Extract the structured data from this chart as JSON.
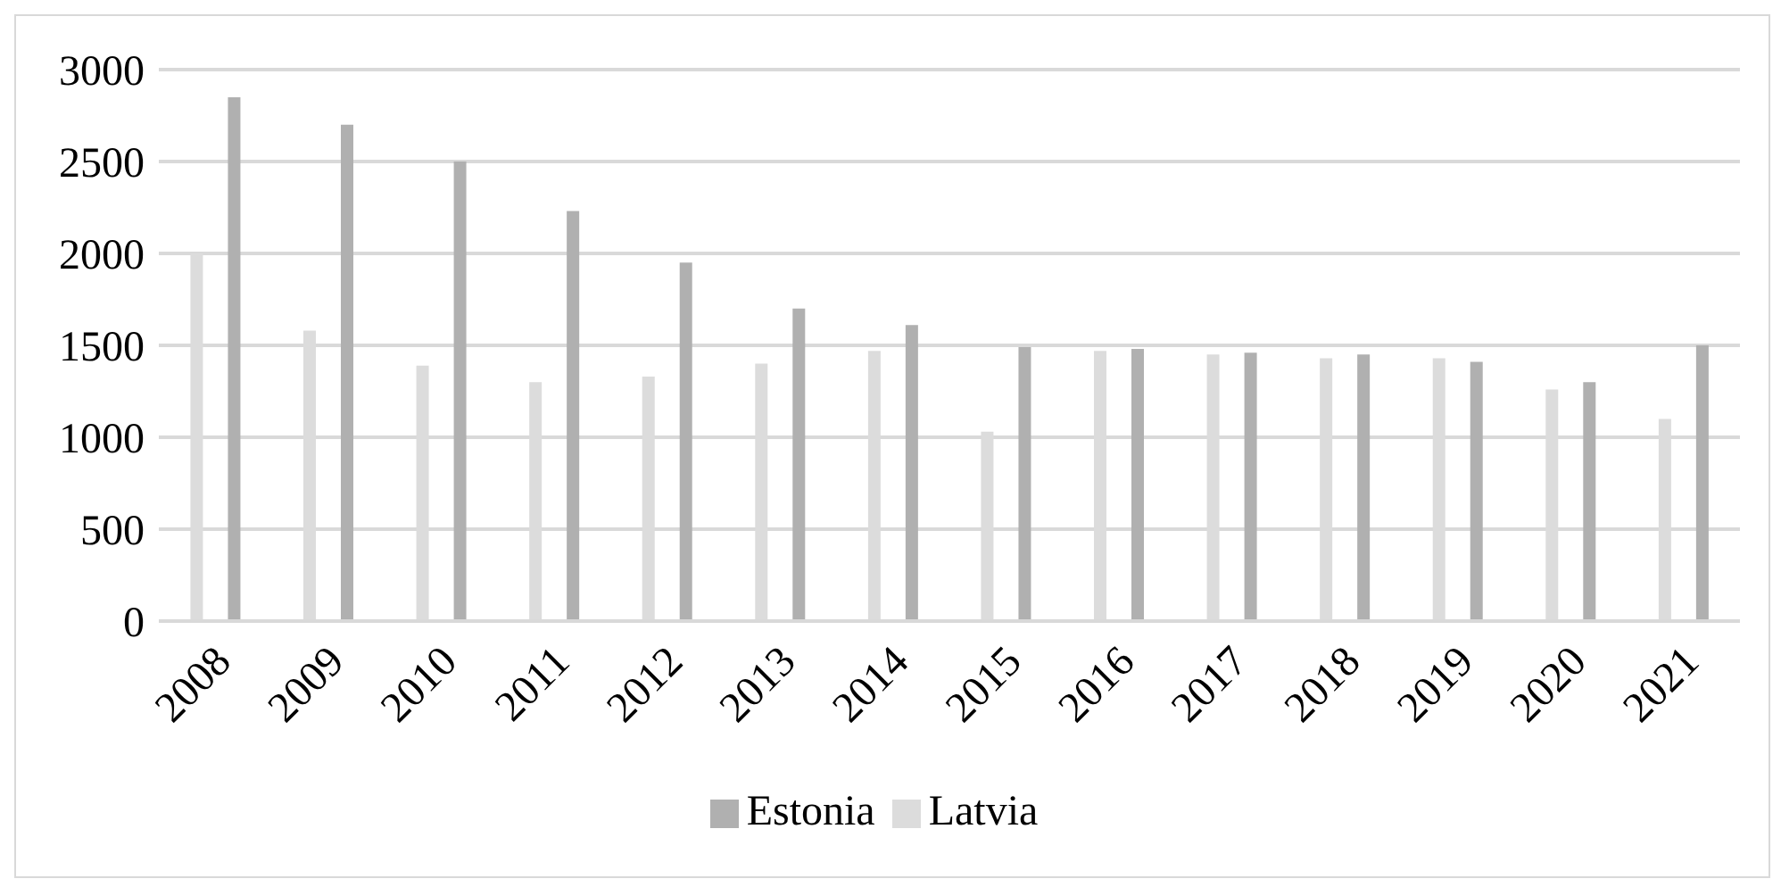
{
  "chart_data": {
    "type": "bar",
    "categories": [
      "2008",
      "2009",
      "2010",
      "2011",
      "2012",
      "2013",
      "2014",
      "2015",
      "2016",
      "2017",
      "2018",
      "2019",
      "2020",
      "2021"
    ],
    "series": [
      {
        "name": "Latvia",
        "color": "#dcdcdc",
        "values": [
          2000,
          1580,
          1390,
          1300,
          1330,
          1400,
          1470,
          1030,
          1470,
          1450,
          1430,
          1430,
          1260,
          1100
        ]
      },
      {
        "name": "Estonia",
        "color": "#b0b0b0",
        "values": [
          2850,
          2700,
          2500,
          2230,
          1950,
          1700,
          1610,
          1490,
          1480,
          1460,
          1450,
          1410,
          1300,
          1500
        ]
      }
    ],
    "ylim": [
      0,
      3000
    ],
    "yticks": [
      0,
      500,
      1000,
      1500,
      2000,
      2500,
      3000
    ],
    "grid": "y",
    "legend": "bottom"
  }
}
